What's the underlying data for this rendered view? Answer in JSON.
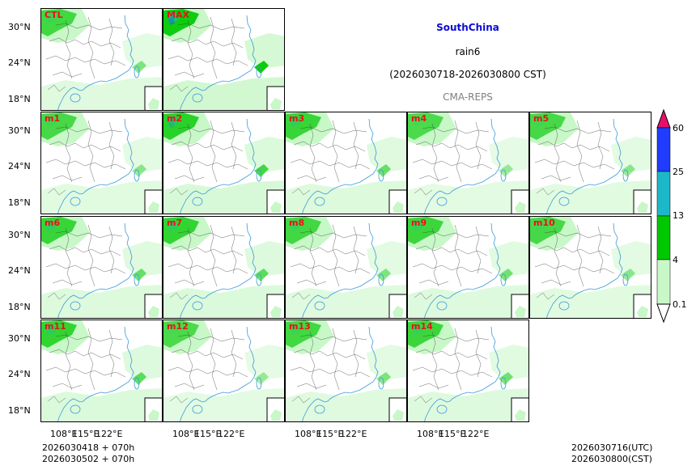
{
  "title": {
    "region": "SouthChina",
    "variable": "rain6",
    "period": "(2026030718-2026030800 CST)",
    "source": "CMA-REPS"
  },
  "colors": {
    "title_blue": "#0b0bd6",
    "label_red": "#e8111a",
    "source_gray": "#7f7f7f"
  },
  "panels": [
    {
      "label": "CTL",
      "intensity": 0.45
    },
    {
      "label": "MAX",
      "intensity": 0.95
    },
    {
      "label": "m1",
      "intensity": 0.4
    },
    {
      "label": "m2",
      "intensity": 0.7
    },
    {
      "label": "m3",
      "intensity": 0.55
    },
    {
      "label": "m4",
      "intensity": 0.35
    },
    {
      "label": "m5",
      "intensity": 0.4
    },
    {
      "label": "m6",
      "intensity": 0.55
    },
    {
      "label": "m7",
      "intensity": 0.6
    },
    {
      "label": "m8",
      "intensity": 0.45
    },
    {
      "label": "m9",
      "intensity": 0.5
    },
    {
      "label": "m10",
      "intensity": 0.4
    },
    {
      "label": "m11",
      "intensity": 0.6
    },
    {
      "label": "m12",
      "intensity": 0.35
    },
    {
      "label": "m13",
      "intensity": 0.45
    },
    {
      "label": "m14",
      "intensity": 0.5
    }
  ],
  "lat_ticks": [
    "30°N",
    "24°N",
    "18°N"
  ],
  "lon_ticks": [
    "108°E",
    "115°E",
    "122°E"
  ],
  "colorbar": {
    "labels": [
      "60",
      "25",
      "13",
      "4",
      "0.1"
    ],
    "colors": [
      "#1f3cff",
      "#1ab8c8",
      "#00c800",
      "#c8f7c8"
    ],
    "over_color": "#e6106b"
  },
  "footer": {
    "left_line1": "2026030418  +  070h",
    "left_line2": "2026030502  +  070h",
    "right_line1": "2026030716(UTC)",
    "right_line2": "2026030800(CST)"
  }
}
